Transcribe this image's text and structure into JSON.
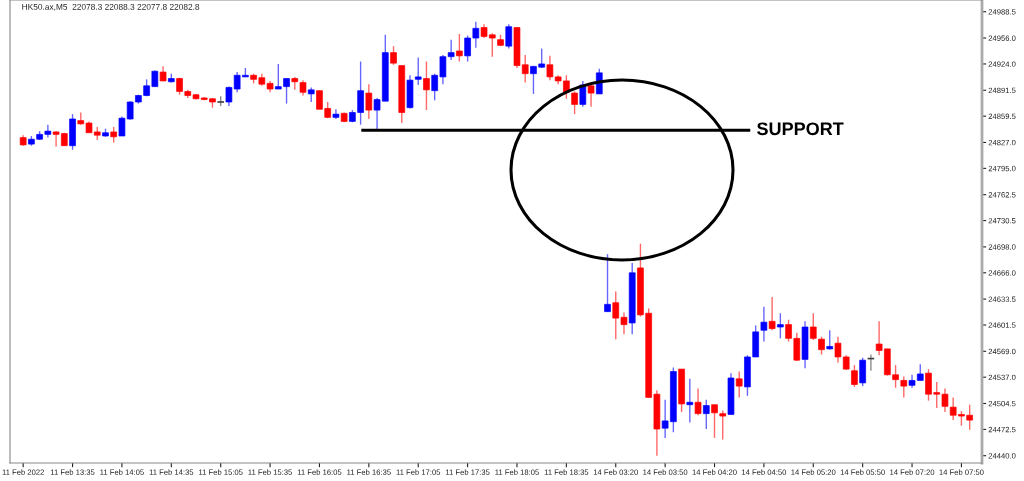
{
  "chart_data": {
    "type": "candlestick",
    "categories": [
      "11 Feb 2022",
      null,
      null,
      null,
      null,
      null,
      "11 Feb 13:35",
      null,
      null,
      null,
      null,
      null,
      "11 Feb 14:05",
      null,
      null,
      null,
      null,
      null,
      "11 Feb 14:35",
      null,
      null,
      null,
      null,
      null,
      "11 Feb 15:05",
      null,
      null,
      null,
      null,
      null,
      "11 Feb 15:35",
      null,
      null,
      null,
      null,
      null,
      "11 Feb 16:05",
      null,
      null,
      null,
      null,
      null,
      "11 Feb 16:35",
      null,
      null,
      null,
      null,
      null,
      "11 Feb 17:05",
      null,
      null,
      null,
      null,
      null,
      "11 Feb 17:35",
      null,
      null,
      null,
      null,
      null,
      "11 Feb 18:05",
      null,
      null,
      null,
      null,
      null,
      "11 Feb 18:35",
      null,
      null,
      null,
      null,
      null,
      "14 Feb 03:20",
      null,
      null,
      null,
      null,
      null,
      "14 Feb 03:50",
      null,
      null,
      null,
      null,
      null,
      "14 Feb 04:20",
      null,
      null,
      null,
      null,
      null,
      "14 Feb 04:50",
      null,
      null,
      null,
      null,
      null,
      "14 Feb 05:20",
      null,
      null,
      null,
      null,
      null,
      "14 Feb 05:50",
      null,
      null,
      null,
      null,
      null,
      "14 Feb 07:20",
      null,
      null,
      null,
      null,
      null,
      "14 Feb 07:50",
      null
    ],
    "ohlc": [
      [
        24833,
        24836,
        24823,
        24824
      ],
      [
        24825,
        24835,
        24823,
        24831
      ],
      [
        24831,
        24841,
        24830,
        24837
      ],
      [
        24837,
        24849,
        24833,
        24841
      ],
      [
        24840,
        24841,
        24822,
        24837
      ],
      [
        24838,
        24839,
        24823,
        24823
      ],
      [
        24823,
        24862,
        24818,
        24856
      ],
      [
        24854,
        24864,
        24849,
        24850
      ],
      [
        24851,
        24853,
        24839,
        24839
      ],
      [
        24840,
        24846,
        24830,
        24836
      ],
      [
        24835,
        24844,
        24834,
        24839
      ],
      [
        24840,
        24846,
        24827,
        24834
      ],
      [
        24835,
        24859,
        24835,
        24857
      ],
      [
        24856,
        24878,
        24855,
        24877
      ],
      [
        24877,
        24886,
        24875,
        24885
      ],
      [
        24885,
        24905,
        24884,
        24897
      ],
      [
        24896,
        24916,
        24896,
        24915
      ],
      [
        24914,
        24921,
        24903,
        24903
      ],
      [
        24902,
        24912,
        24901,
        24906
      ],
      [
        24906,
        24907,
        24886,
        24890
      ],
      [
        24890,
        24892,
        24882,
        24885
      ],
      [
        24886,
        24887,
        24880,
        24881
      ],
      [
        24882,
        24883,
        24879,
        24880
      ],
      [
        24881,
        24882,
        24870,
        24877
      ],
      [
        24877,
        24884,
        24872,
        24877
      ],
      [
        24877,
        24896,
        24872,
        24895
      ],
      [
        24893,
        24914,
        24889,
        24910
      ],
      [
        24908,
        24919,
        24908,
        24910
      ],
      [
        24910,
        24912,
        24900,
        24905
      ],
      [
        24907,
        24912,
        24897,
        24899
      ],
      [
        24900,
        24903,
        24889,
        24893
      ],
      [
        24893,
        24924,
        24893,
        24896
      ],
      [
        24896,
        24906,
        24875,
        24906
      ],
      [
        24906,
        24908,
        24892,
        24902
      ],
      [
        24901,
        24904,
        24885,
        24889
      ],
      [
        24887,
        24895,
        24877,
        24892
      ],
      [
        24891,
        24891,
        24868,
        24868
      ],
      [
        24869,
        24877,
        24857,
        24858
      ],
      [
        24858,
        24868,
        24856,
        24862
      ],
      [
        24863,
        24864,
        24852,
        24853
      ],
      [
        24853,
        24867,
        24852,
        24864
      ],
      [
        24864,
        24927,
        24849,
        24891
      ],
      [
        24888,
        24899,
        24856,
        24867
      ],
      [
        24867,
        24882,
        24842,
        24880
      ],
      [
        24878,
        24960,
        24878,
        24938
      ],
      [
        24938,
        24946,
        24923,
        24925
      ],
      [
        24922,
        24922,
        24851,
        24864
      ],
      [
        24870,
        24910,
        24869,
        24904
      ],
      [
        24905,
        24932,
        24898,
        24908
      ],
      [
        24906,
        24927,
        24867,
        24892
      ],
      [
        24891,
        24912,
        24879,
        24910
      ],
      [
        24908,
        24935,
        24899,
        24933
      ],
      [
        24933,
        24954,
        24929,
        24938
      ],
      [
        24940,
        24961,
        24927,
        24934
      ],
      [
        24934,
        24959,
        24927,
        24956
      ],
      [
        24956,
        24976,
        24944,
        24968
      ],
      [
        24969,
        24973,
        24956,
        24958
      ],
      [
        24960,
        24962,
        24933,
        24956
      ],
      [
        24954,
        24960,
        24946,
        24947
      ],
      [
        24946,
        24973,
        24943,
        24970
      ],
      [
        24969,
        24969,
        24919,
        24922
      ],
      [
        24923,
        24935,
        24901,
        24912
      ],
      [
        24912,
        24921,
        24887,
        24921
      ],
      [
        24920,
        24943,
        24919,
        24924
      ],
      [
        24923,
        24934,
        24904,
        24908
      ],
      [
        24908,
        24910,
        24899,
        24903
      ],
      [
        24903,
        24910,
        24881,
        24889
      ],
      [
        24888,
        24890,
        24862,
        24874
      ],
      [
        24874,
        24903,
        24871,
        24898
      ],
      [
        24897,
        24898,
        24871,
        24888
      ],
      [
        24887,
        24918,
        24887,
        24913
      ],
      [
        24618,
        24689,
        24618,
        24627
      ],
      [
        24629,
        24643,
        24584,
        24610
      ],
      [
        24611,
        24617,
        24590,
        24602
      ],
      [
        24604,
        24678,
        24590,
        24666
      ],
      [
        24672,
        24702,
        24612,
        24614
      ],
      [
        24616,
        24622,
        24512,
        24512
      ],
      [
        24516,
        24521,
        24440,
        24473
      ],
      [
        24474,
        24509,
        24462,
        24483
      ],
      [
        24482,
        24549,
        24469,
        24544
      ],
      [
        24547,
        24547,
        24494,
        24504
      ],
      [
        24503,
        24535,
        24481,
        24506
      ],
      [
        24506,
        24523,
        24490,
        24492
      ],
      [
        24492,
        24509,
        24473,
        24502
      ],
      [
        24503,
        24503,
        24462,
        24493
      ],
      [
        24492,
        24496,
        24460,
        24489
      ],
      [
        24491,
        24542,
        24491,
        24536
      ],
      [
        24535,
        24544,
        24512,
        24526
      ],
      [
        24525,
        24564,
        24514,
        24562
      ],
      [
        24562,
        24601,
        24562,
        24593
      ],
      [
        24595,
        24624,
        24581,
        24605
      ],
      [
        24606,
        24636,
        24595,
        24597
      ],
      [
        24599,
        24616,
        24585,
        24602
      ],
      [
        24602,
        24608,
        24581,
        24585
      ],
      [
        24585,
        24592,
        24557,
        24558
      ],
      [
        24559,
        24606,
        24548,
        24599
      ],
      [
        24599,
        24616,
        24583,
        24585
      ],
      [
        24584,
        24587,
        24565,
        24571
      ],
      [
        24572,
        24595,
        24571,
        24575
      ],
      [
        24579,
        24587,
        24555,
        24562
      ],
      [
        24562,
        24564,
        24546,
        24547
      ],
      [
        24545,
        24552,
        24525,
        24528
      ],
      [
        24530,
        24561,
        24526,
        24558
      ],
      [
        24560,
        24565,
        24545,
        24560
      ],
      [
        24578,
        24606,
        24564,
        24570
      ],
      [
        24572,
        24572,
        24539,
        24540
      ],
      [
        24540,
        24552,
        24524,
        24534
      ],
      [
        24533,
        24538,
        24512,
        24526
      ],
      [
        24527,
        24540,
        24524,
        24533
      ],
      [
        24533,
        24553,
        24533,
        24541
      ],
      [
        24542,
        24547,
        24508,
        24516
      ],
      [
        24518,
        24531,
        24499,
        24516
      ],
      [
        24516,
        24523,
        24494,
        24501
      ],
      [
        24500,
        24512,
        24484,
        24490
      ],
      [
        24491,
        24495,
        24477,
        24489
      ],
      [
        24490,
        24503,
        24472,
        24484
      ]
    ],
    "colors": [
      "#ff0000",
      "#0000ff",
      "#0000ff",
      "#0000ff",
      "#ff0000",
      "#ff0000",
      "#0000ff",
      "#ff0000",
      "#ff0000",
      "#ff0000",
      "#0000ff",
      "#ff0000",
      "#0000ff",
      "#0000ff",
      "#0000ff",
      "#0000ff",
      "#0000ff",
      "#ff0000",
      "#0000ff",
      "#ff0000",
      "#ff0000",
      "#ff0000",
      "#ff0000",
      "#ff0000",
      "#404040",
      "#0000ff",
      "#0000ff",
      "#0000ff",
      "#ff0000",
      "#ff0000",
      "#ff0000",
      "#0000ff",
      "#0000ff",
      "#ff0000",
      "#ff0000",
      "#0000ff",
      "#ff0000",
      "#ff0000",
      "#0000ff",
      "#ff0000",
      "#0000ff",
      "#0000ff",
      "#ff0000",
      "#0000ff",
      "#0000ff",
      "#ff0000",
      "#ff0000",
      "#0000ff",
      "#0000ff",
      "#ff0000",
      "#0000ff",
      "#0000ff",
      "#0000ff",
      "#ff0000",
      "#0000ff",
      "#0000ff",
      "#ff0000",
      "#ff0000",
      "#ff0000",
      "#0000ff",
      "#ff0000",
      "#ff0000",
      "#0000ff",
      "#0000ff",
      "#ff0000",
      "#ff0000",
      "#ff0000",
      "#ff0000",
      "#0000ff",
      "#ff0000",
      "#0000ff",
      "#0000ff",
      "#ff0000",
      "#ff0000",
      "#0000ff",
      "#ff0000",
      "#ff0000",
      "#ff0000",
      "#0000ff",
      "#0000ff",
      "#ff0000",
      "#0000ff",
      "#ff0000",
      "#0000ff",
      "#ff0000",
      "#ff0000",
      "#0000ff",
      "#ff0000",
      "#0000ff",
      "#0000ff",
      "#0000ff",
      "#ff0000",
      "#0000ff",
      "#ff0000",
      "#ff0000",
      "#0000ff",
      "#ff0000",
      "#ff0000",
      "#0000ff",
      "#ff0000",
      "#ff0000",
      "#ff0000",
      "#0000ff",
      "#404040",
      "#ff0000",
      "#ff0000",
      "#ff0000",
      "#ff0000",
      "#0000ff",
      "#0000ff",
      "#ff0000",
      "#ff0000",
      "#ff0000",
      "#ff0000",
      "#ff0000",
      "#ff0000"
    ],
    "ylim": [
      24431,
      25003
    ],
    "yticks": [
      24988.5,
      {
        "value": 24956,
        "label": "24956.0"
      },
      {
        "value": 24924,
        "label": "24924.0"
      },
      24891.5,
      24859.5,
      {
        "value": 24827,
        "label": "24827.0"
      },
      {
        "value": 24795,
        "label": "24795.0"
      },
      24762.5,
      24730.5,
      {
        "value": 24698,
        "label": "24698.0"
      },
      {
        "value": 24666,
        "label": "24666.0"
      },
      24633.5,
      24601.5,
      {
        "value": 24569,
        "label": "24569.0"
      },
      {
        "value": 24537,
        "label": "24537.0"
      },
      24504.5,
      24472.5,
      {
        "value": 24440,
        "label": "24440.0"
      }
    ],
    "ref_lines": [
      {
        "axis": "y",
        "value": 24842,
        "label": "SUPPORT",
        "color": "#000000"
      }
    ],
    "annotations": [
      "HK50.ax,M5  22078.3 22088.3 22077.8 22082.8"
    ],
    "grid": false,
    "legend": false
  }
}
